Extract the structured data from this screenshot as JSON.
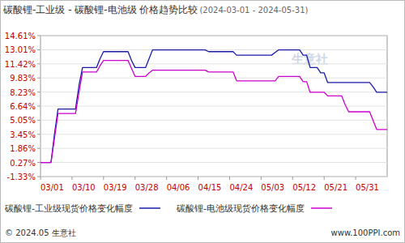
{
  "chart_data": {
    "type": "line",
    "title": "碳酸锂-工业级 - 碳酸锂-电池级 价格趋势比较",
    "subtitle": "(2024-03-01 - 2024-05-31)",
    "watermark": "生意社",
    "source": "© 2024.05 生意社",
    "website": "www.100PPI.com",
    "categories": [
      "03/01",
      null,
      null,
      null,
      null,
      null,
      null,
      null,
      null,
      "03/10",
      null,
      null,
      null,
      null,
      null,
      null,
      null,
      null,
      "03/19",
      null,
      null,
      null,
      null,
      null,
      null,
      null,
      null,
      "03/28",
      null,
      null,
      null,
      null,
      null,
      null,
      null,
      null,
      "04/06",
      null,
      null,
      null,
      null,
      null,
      null,
      null,
      null,
      "04/15",
      null,
      null,
      null,
      null,
      null,
      null,
      null,
      null,
      "04/24",
      null,
      null,
      null,
      null,
      null,
      null,
      null,
      null,
      "05/03",
      null,
      null,
      null,
      null,
      null,
      null,
      null,
      null,
      "05/12",
      null,
      null,
      null,
      null,
      null,
      null,
      null,
      null,
      "05/21",
      null,
      null,
      null,
      null,
      null,
      null,
      null,
      null,
      "05/31",
      null,
      null,
      null,
      null,
      null,
      null,
      null,
      null,
      null
    ],
    "series": [
      {
        "name": "碳酸锂-工业级现货价格变化幅度",
        "color": "#1a1aa6",
        "values": [
          0.27,
          0.27,
          0.27,
          0.27,
          3.5,
          6.3,
          6.3,
          6.3,
          6.3,
          6.3,
          6.3,
          9.0,
          11.0,
          11.0,
          11.0,
          11.0,
          11.0,
          12.0,
          12.8,
          12.8,
          12.8,
          12.8,
          12.8,
          12.8,
          12.8,
          12.8,
          11.8,
          11.0,
          11.0,
          11.0,
          11.0,
          12.0,
          13.0,
          13.0,
          13.0,
          13.0,
          13.0,
          13.0,
          13.0,
          13.0,
          13.0,
          13.0,
          13.0,
          13.0,
          13.0,
          13.0,
          13.0,
          13.0,
          12.8,
          12.8,
          12.8,
          12.8,
          12.8,
          12.8,
          12.8,
          12.8,
          12.4,
          12.4,
          12.4,
          12.4,
          12.4,
          12.4,
          12.4,
          12.4,
          12.4,
          12.4,
          12.4,
          12.7,
          13.0,
          13.0,
          13.0,
          13.0,
          13.0,
          13.0,
          13.0,
          12.4,
          12.4,
          11.0,
          11.0,
          11.0,
          10.4,
          10.4,
          9.3,
          9.3,
          9.3,
          9.3,
          9.3,
          9.3,
          9.3,
          9.3,
          9.3,
          9.3,
          9.3,
          9.3,
          9.3,
          8.8,
          8.2,
          8.2,
          8.2,
          8.2
        ]
      },
      {
        "name": "碳酸锂-电池级现货价格变化幅度",
        "color": "#cc00cc",
        "values": [
          0.27,
          0.27,
          0.27,
          0.27,
          3.0,
          5.8,
          5.8,
          5.8,
          5.8,
          5.8,
          5.8,
          8.2,
          10.5,
          10.5,
          10.5,
          10.5,
          10.5,
          11.2,
          11.8,
          11.8,
          11.8,
          11.8,
          11.8,
          11.8,
          11.8,
          11.8,
          10.9,
          10.0,
          10.0,
          10.0,
          10.0,
          10.4,
          10.7,
          10.7,
          10.7,
          10.7,
          10.7,
          10.7,
          10.7,
          10.7,
          10.7,
          10.7,
          10.7,
          10.7,
          10.7,
          10.7,
          10.7,
          10.7,
          10.5,
          10.5,
          10.5,
          10.5,
          10.5,
          10.5,
          10.5,
          10.5,
          9.5,
          9.5,
          9.5,
          9.5,
          9.5,
          9.5,
          9.5,
          9.5,
          9.5,
          9.5,
          9.5,
          9.5,
          10.0,
          10.0,
          10.0,
          10.0,
          10.0,
          10.0,
          10.0,
          9.4,
          9.4,
          8.2,
          8.2,
          8.2,
          8.2,
          8.2,
          7.8,
          7.8,
          7.8,
          7.8,
          7.8,
          6.8,
          6.0,
          6.0,
          6.0,
          6.0,
          6.0,
          6.0,
          6.0,
          5.0,
          4.0,
          4.0,
          4.0,
          4.0
        ]
      }
    ],
    "ylim": [
      -1.33,
      14.61
    ],
    "yticks": [
      {
        "value": 14.61,
        "label": "14.61%"
      },
      {
        "value": 13.01,
        "label": "13.01%"
      },
      {
        "value": 11.42,
        "label": "11.42%"
      },
      {
        "value": 9.83,
        "label": "9.83%"
      },
      {
        "value": 8.23,
        "label": "8.23%"
      },
      {
        "value": 6.64,
        "label": "6.64%"
      },
      {
        "value": 5.05,
        "label": "5.05%"
      },
      {
        "value": 3.45,
        "label": "3.45%"
      },
      {
        "value": 1.86,
        "label": "1.86%"
      },
      {
        "value": 0.27,
        "label": "0.27%"
      },
      {
        "value": -1.33,
        "label": "-1.33%"
      }
    ],
    "grid": true,
    "legend": "bottom"
  }
}
